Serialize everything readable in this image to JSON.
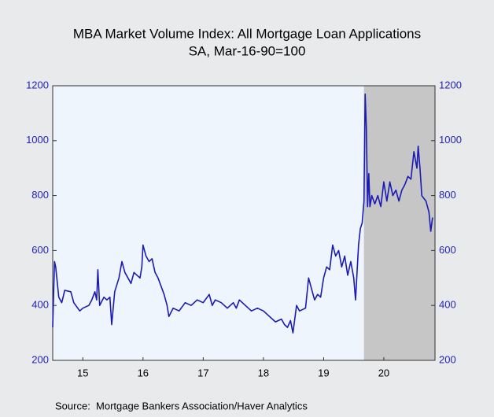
{
  "chart_data": {
    "type": "line",
    "title": "MBA Market Volume Index: All Mortgage Loan Applications",
    "subtitle": "SA, Mar-16-90=100",
    "source": "Source:  Mortgage Bankers Association/Haver Analytics",
    "color": "#1a1ab4",
    "shaded_region": [
      2020.17,
      2021.35
    ],
    "xlim": [
      2015,
      2021.35
    ],
    "xticks": [
      {
        "value": 2015.5,
        "label": "15"
      },
      {
        "value": 2016.5,
        "label": "16"
      },
      {
        "value": 2017.5,
        "label": "17"
      },
      {
        "value": 2018.5,
        "label": "18"
      },
      {
        "value": 2019.5,
        "label": "19"
      },
      {
        "value": 2020.5,
        "label": "20"
      }
    ],
    "ylim": [
      200,
      1200
    ],
    "yticks": [
      200,
      400,
      600,
      800,
      1000,
      1200
    ],
    "y2lim": [
      200,
      1200
    ],
    "y2ticks": [
      200,
      400,
      600,
      800,
      1000,
      1200
    ],
    "x": [
      2015.0,
      2015.03,
      2015.05,
      2015.1,
      2015.15,
      2015.2,
      2015.3,
      2015.35,
      2015.45,
      2015.5,
      2015.6,
      2015.65,
      2015.7,
      2015.73,
      2015.75,
      2015.78,
      2015.85,
      2015.9,
      2015.95,
      2015.98,
      2016.03,
      2016.1,
      2016.15,
      2016.2,
      2016.25,
      2016.3,
      2016.35,
      2016.4,
      2016.45,
      2016.48,
      2016.5,
      2016.55,
      2016.6,
      2016.65,
      2016.7,
      2016.75,
      2016.8,
      2016.85,
      2016.9,
      2016.93,
      2017.0,
      2017.1,
      2017.2,
      2017.3,
      2017.4,
      2017.5,
      2017.6,
      2017.65,
      2017.7,
      2017.8,
      2017.9,
      2018.0,
      2018.05,
      2018.1,
      2018.2,
      2018.3,
      2018.4,
      2018.5,
      2018.6,
      2018.7,
      2018.8,
      2018.85,
      2018.9,
      2018.95,
      2018.99,
      2019.05,
      2019.1,
      2019.2,
      2019.25,
      2019.3,
      2019.35,
      2019.4,
      2019.45,
      2019.5,
      2019.55,
      2019.6,
      2019.65,
      2019.7,
      2019.75,
      2019.8,
      2019.85,
      2019.9,
      2019.95,
      2020.0,
      2020.03,
      2020.08,
      2020.11,
      2020.14,
      2020.17,
      2020.19,
      2020.21,
      2020.23,
      2020.25,
      2020.27,
      2020.3,
      2020.35,
      2020.4,
      2020.45,
      2020.5,
      2020.55,
      2020.6,
      2020.65,
      2020.7,
      2020.75,
      2020.8,
      2020.85,
      2020.9,
      2020.95,
      2021.0,
      2021.05,
      2021.07,
      2021.1,
      2021.13,
      2021.2,
      2021.25,
      2021.28,
      2021.31
    ],
    "values": [
      320,
      560,
      540,
      430,
      410,
      455,
      450,
      410,
      380,
      390,
      400,
      420,
      450,
      420,
      530,
      400,
      430,
      420,
      430,
      330,
      450,
      500,
      560,
      520,
      500,
      480,
      520,
      510,
      500,
      540,
      620,
      580,
      560,
      570,
      520,
      500,
      470,
      440,
      400,
      360,
      390,
      380,
      410,
      400,
      420,
      410,
      440,
      400,
      420,
      410,
      390,
      410,
      390,
      420,
      400,
      380,
      390,
      380,
      360,
      340,
      350,
      330,
      320,
      345,
      300,
      400,
      380,
      390,
      500,
      460,
      420,
      440,
      430,
      500,
      540,
      530,
      620,
      580,
      600,
      540,
      580,
      510,
      560,
      500,
      420,
      620,
      680,
      700,
      780,
      1170,
      1050,
      760,
      880,
      760,
      800,
      770,
      800,
      760,
      850,
      780,
      850,
      800,
      820,
      780,
      820,
      840,
      870,
      860,
      960,
      900,
      980,
      900,
      800,
      780,
      740,
      670,
      720
    ]
  }
}
